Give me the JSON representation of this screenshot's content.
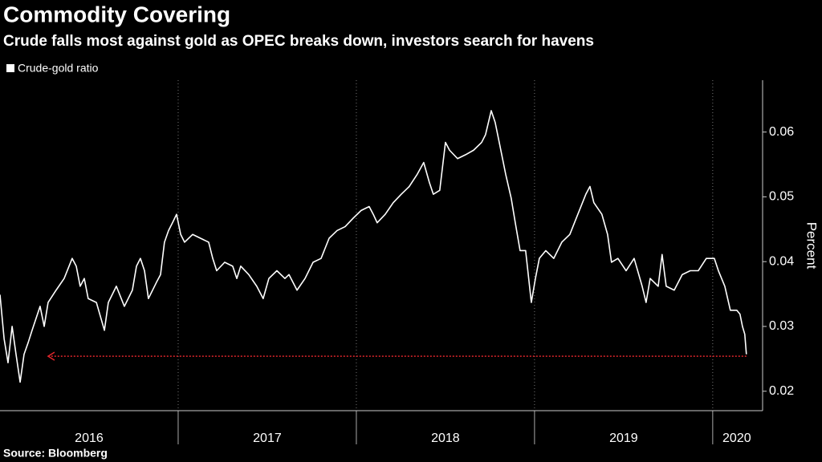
{
  "chart_data": {
    "type": "line",
    "title": "Commodity Covering",
    "subtitle": "Crude falls most against gold as OPEC breaks down, investors search for havens",
    "y_label": "Percent",
    "source": "Source: Bloomberg",
    "xlim": [
      2016,
      2020.28
    ],
    "xticks": [
      2017,
      2018,
      2019,
      2020
    ],
    "x_labels": [
      {
        "value": 2016.5,
        "label": "2016"
      },
      {
        "value": 2017.5,
        "label": "2017"
      },
      {
        "value": 2018.5,
        "label": "2018"
      },
      {
        "value": 2019.5,
        "label": "2019"
      },
      {
        "value": 2020.135,
        "label": "2020"
      }
    ],
    "ylim": [
      0.017,
      0.068
    ],
    "yticks": [
      0.02,
      0.03,
      0.04,
      0.05,
      0.06
    ],
    "grid": true,
    "series": [
      {
        "name": "Crude-gold ratio",
        "color": "#ffffff",
        "x": [
          2016,
          2016.023,
          2016.045,
          2016.068,
          2016.09,
          2016.113,
          2016.135,
          2016.158,
          2016.18,
          2016.225,
          2016.248,
          2016.27,
          2016.315,
          2016.36,
          2016.405,
          2016.428,
          2016.45,
          2016.473,
          2016.495,
          2016.541,
          2016.586,
          2016.608,
          2016.653,
          2016.698,
          2016.743,
          2016.766,
          2016.788,
          2016.811,
          2016.833,
          2016.878,
          2016.901,
          2016.923,
          2016.946,
          2016.968,
          2016.991,
          2017.014,
          2017.036,
          2017.081,
          2017.126,
          2017.171,
          2017.194,
          2017.216,
          2017.261,
          2017.306,
          2017.329,
          2017.351,
          2017.396,
          2017.441,
          2017.477,
          2017.509,
          2017.554,
          2017.599,
          2017.622,
          2017.667,
          2017.712,
          2017.757,
          2017.802,
          2017.847,
          2017.892,
          2017.937,
          2017.982,
          2018.027,
          2018.072,
          2018.095,
          2018.117,
          2018.162,
          2018.207,
          2018.252,
          2018.297,
          2018.342,
          2018.378,
          2018.41,
          2018.432,
          2018.468,
          2018.5,
          2018.523,
          2018.568,
          2018.613,
          2018.658,
          2018.703,
          2018.725,
          2018.757,
          2018.779,
          2018.802,
          2018.838,
          2018.869,
          2018.892,
          2018.919,
          2018.95,
          2018.982,
          2019.005,
          2019.027,
          2019.063,
          2019.108,
          2019.153,
          2019.198,
          2019.243,
          2019.288,
          2019.311,
          2019.333,
          2019.378,
          2019.41,
          2019.432,
          2019.468,
          2019.514,
          2019.559,
          2019.604,
          2019.626,
          2019.649,
          2019.694,
          2019.716,
          2019.739,
          2019.784,
          2019.829,
          2019.874,
          2019.919,
          2019.964,
          2020.009,
          2020.032,
          2020.068,
          2020.099,
          2020.135,
          2020.153,
          2020.167,
          2020.18,
          2020.189
        ],
        "values": [
          0.0349,
          0.0281,
          0.0244,
          0.03,
          0.0257,
          0.0214,
          0.0257,
          0.0275,
          0.0294,
          0.0331,
          0.03,
          0.0337,
          0.0356,
          0.0374,
          0.0405,
          0.0393,
          0.0362,
          0.0374,
          0.0343,
          0.0337,
          0.0294,
          0.0337,
          0.0362,
          0.0331,
          0.0356,
          0.0393,
          0.0405,
          0.0386,
          0.0343,
          0.0368,
          0.038,
          0.043,
          0.0448,
          0.046,
          0.0473,
          0.0442,
          0.043,
          0.0442,
          0.0436,
          0.043,
          0.0405,
          0.0386,
          0.0399,
          0.0393,
          0.0374,
          0.0393,
          0.038,
          0.0362,
          0.0343,
          0.0374,
          0.0386,
          0.0374,
          0.038,
          0.0356,
          0.0374,
          0.0399,
          0.0405,
          0.0436,
          0.0448,
          0.0454,
          0.0467,
          0.0479,
          0.0485,
          0.0473,
          0.046,
          0.0473,
          0.0491,
          0.0504,
          0.0516,
          0.0535,
          0.0553,
          0.0522,
          0.0504,
          0.051,
          0.0584,
          0.0572,
          0.0559,
          0.0565,
          0.0572,
          0.0584,
          0.0596,
          0.0633,
          0.0615,
          0.0584,
          0.0535,
          0.0498,
          0.046,
          0.0417,
          0.0417,
          0.0337,
          0.0374,
          0.0405,
          0.0417,
          0.0405,
          0.043,
          0.0442,
          0.0473,
          0.0504,
          0.0516,
          0.0491,
          0.0473,
          0.0442,
          0.0399,
          0.0405,
          0.0386,
          0.0405,
          0.0362,
          0.0337,
          0.0374,
          0.0362,
          0.0411,
          0.0362,
          0.0356,
          0.038,
          0.0386,
          0.0386,
          0.0405,
          0.0405,
          0.0386,
          0.0362,
          0.0325,
          0.0325,
          0.0319,
          0.03,
          0.0288,
          0.0257
        ]
      }
    ],
    "reference_line": {
      "value": 0.0254,
      "color": "#e0262b",
      "x": [
        2020.189,
        2016.27
      ]
    }
  }
}
